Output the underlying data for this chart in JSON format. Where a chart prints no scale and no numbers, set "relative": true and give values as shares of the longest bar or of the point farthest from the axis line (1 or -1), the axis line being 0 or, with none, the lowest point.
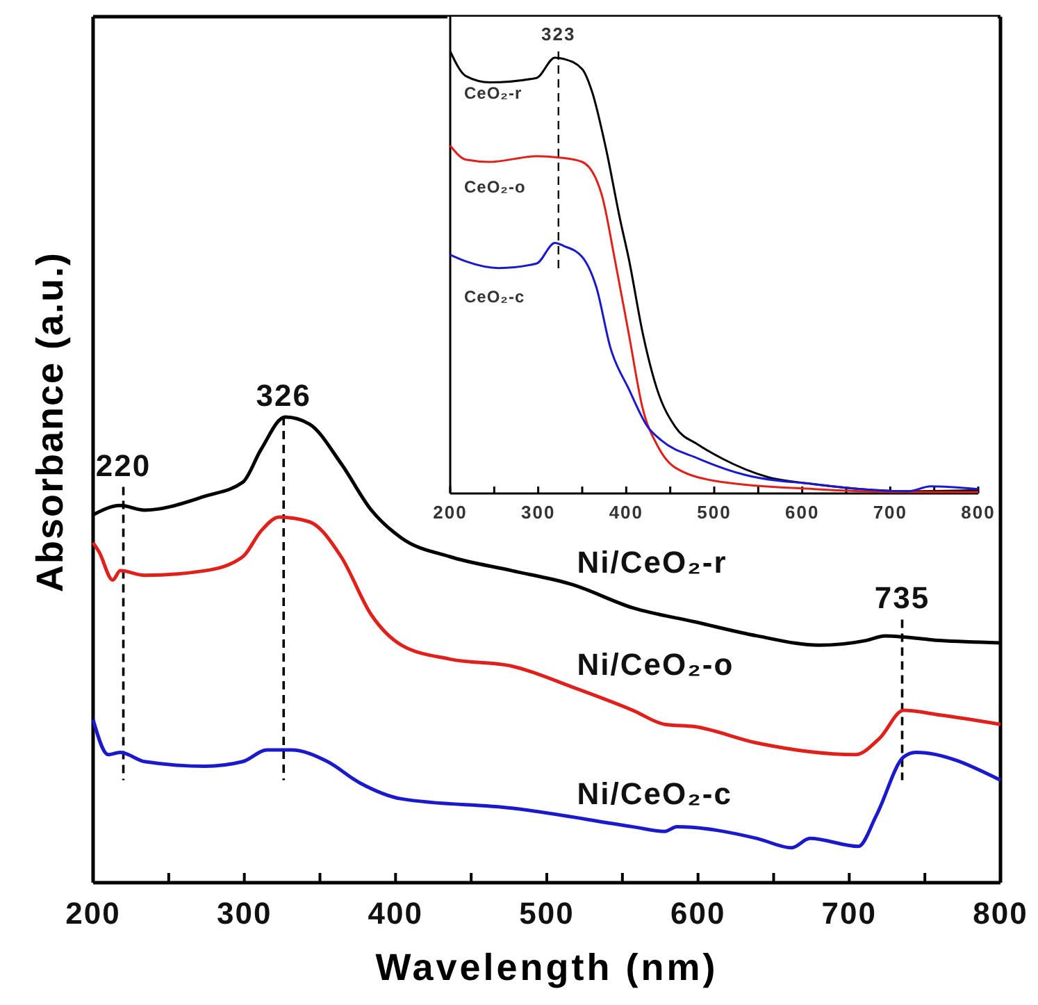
{
  "chart_data": [
    {
      "type": "line",
      "relative": true,
      "xlabel": "Wavelength (nm)",
      "ylabel": "Absorbance (a.u.)",
      "xlim": [
        200,
        800
      ],
      "xticks": [
        200,
        {
          "value": 250,
          "label": null
        },
        300,
        {
          "value": 350,
          "label": null
        },
        400,
        {
          "value": 450,
          "label": null
        },
        500,
        {
          "value": 550,
          "label": null
        },
        600,
        {
          "value": 650,
          "label": null
        },
        700,
        {
          "value": 750,
          "label": null
        },
        800
      ],
      "series": [
        {
          "name": "Ni/CeO₂-r",
          "color": "#000000",
          "x": [
            200,
            218,
            234,
            274,
            299,
            311,
            327,
            343,
            364,
            384,
            404,
            436,
            477,
            517,
            557,
            598,
            639,
            680,
            711,
            724,
            760,
            800
          ],
          "values": [
            0.79,
            0.81,
            0.8,
            0.83,
            0.86,
            0.93,
            1.0,
            0.985,
            0.9,
            0.8,
            0.74,
            0.7,
            0.67,
            0.64,
            0.59,
            0.56,
            0.53,
            0.51,
            0.52,
            0.53,
            0.52,
            0.515
          ]
        },
        {
          "name": "Ni/CeO₂-o",
          "color": "#e0201b",
          "x": [
            200,
            204,
            213,
            218,
            234,
            274,
            299,
            311,
            323,
            343,
            364,
            384,
            404,
            436,
            477,
            517,
            557,
            578,
            598,
            639,
            704,
            720,
            736,
            760,
            800
          ],
          "values": [
            0.73,
            0.71,
            0.65,
            0.67,
            0.66,
            0.67,
            0.7,
            0.755,
            0.785,
            0.775,
            0.7,
            0.575,
            0.51,
            0.48,
            0.465,
            0.42,
            0.37,
            0.34,
            0.335,
            0.3,
            0.275,
            0.31,
            0.37,
            0.36,
            0.34
          ]
        },
        {
          "name": "Ni/CeO₂-c",
          "color": "#1a1acc",
          "x": [
            200,
            210,
            218,
            234,
            274,
            299,
            315,
            331,
            355,
            376,
            404,
            477,
            557,
            578,
            586,
            639,
            662,
            674,
            706,
            718,
            736,
            744,
            800
          ],
          "values": [
            0.35,
            0.275,
            0.28,
            0.26,
            0.25,
            0.26,
            0.285,
            0.285,
            0.26,
            0.215,
            0.18,
            0.16,
            0.12,
            0.11,
            0.12,
            0.095,
            0.075,
            0.095,
            0.078,
            0.145,
            0.27,
            0.28,
            0.22
          ]
        }
      ],
      "annotations": [
        {
          "text": "220",
          "x": 220,
          "y": 0.85
        },
        {
          "text": "326",
          "x": 326,
          "y": 1.0
        },
        {
          "text": "735",
          "x": 735,
          "y": 0.565
        }
      ],
      "ref_lines": [
        {
          "axis": "x",
          "value": 220,
          "line_style": "dashed"
        },
        {
          "axis": "x",
          "value": 326,
          "line_style": "dashed"
        },
        {
          "axis": "x",
          "value": 735,
          "line_style": "dashed"
        }
      ]
    },
    {
      "type": "line",
      "relative": true,
      "xlim": [
        200,
        800
      ],
      "xticks": [
        200,
        {
          "value": 250,
          "label": null
        },
        300,
        {
          "value": 350,
          "label": null
        },
        400,
        {
          "value": 450,
          "label": null
        },
        500,
        {
          "value": 550,
          "label": null
        },
        600,
        {
          "value": 650,
          "label": null
        },
        700,
        {
          "value": 750,
          "label": null
        },
        800
      ],
      "series": [
        {
          "name": "CeO₂-r",
          "color": "#000000",
          "x": [
            200,
            218,
            245,
            298,
            319,
            329,
            350,
            361,
            377,
            393,
            403,
            419,
            435,
            456,
            482,
            509,
            561,
            614,
            667,
            720,
            800
          ],
          "values": [
            1.0,
            0.944,
            0.93,
            0.94,
            0.986,
            0.983,
            0.96,
            0.91,
            0.78,
            0.62,
            0.53,
            0.36,
            0.236,
            0.15,
            0.11,
            0.079,
            0.037,
            0.021,
            0.01,
            0.005,
            0.007
          ]
        },
        {
          "name": "CeO₂-o",
          "color": "#e0201b",
          "x": [
            200,
            218,
            245,
            298,
            324,
            350,
            372,
            387,
            403,
            419,
            435,
            456,
            509,
            614,
            720,
            800
          ],
          "values": [
            0.787,
            0.755,
            0.75,
            0.763,
            0.76,
            0.75,
            0.677,
            0.53,
            0.36,
            0.19,
            0.11,
            0.058,
            0.026,
            0.01,
            0.003,
            0.003
          ]
        },
        {
          "name": "CeO₂-c",
          "color": "#1a1acc",
          "x": [
            200,
            218,
            255,
            298,
            319,
            329,
            350,
            366,
            382,
            403,
            424,
            440,
            482,
            535,
            614,
            667,
            720,
            746,
            800
          ],
          "values": [
            0.54,
            0.525,
            0.51,
            0.52,
            0.567,
            0.56,
            0.535,
            0.467,
            0.33,
            0.236,
            0.152,
            0.12,
            0.079,
            0.042,
            0.021,
            0.01,
            0.005,
            0.016,
            0.01
          ]
        }
      ],
      "annotations": [
        {
          "text": "323",
          "x": 323,
          "y": 1.0
        }
      ],
      "ref_lines": [
        {
          "axis": "x",
          "value": 323,
          "line_style": "dashed"
        }
      ]
    }
  ]
}
